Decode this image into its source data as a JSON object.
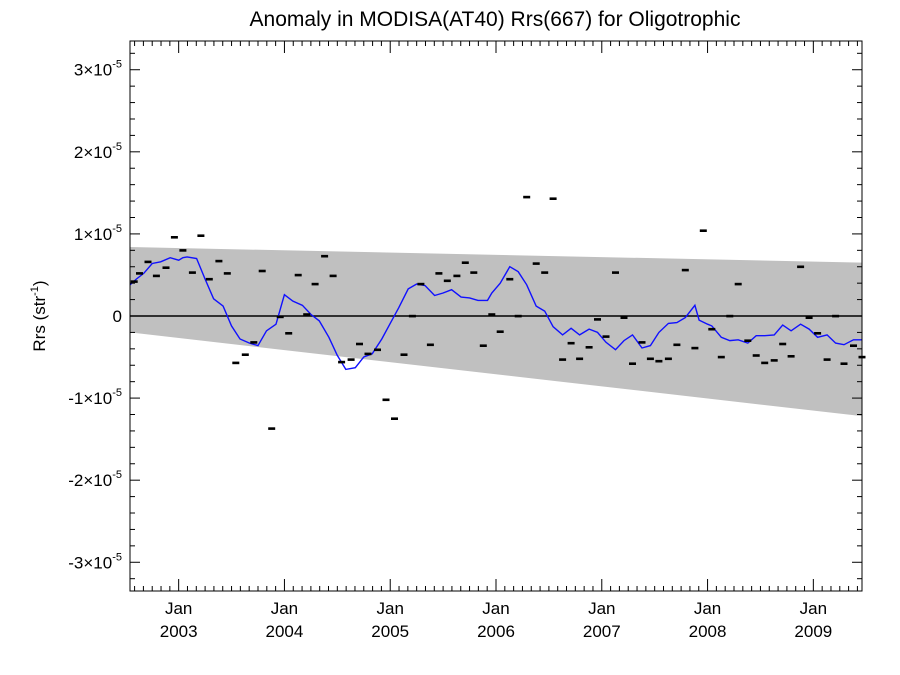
{
  "chart_data": {
    "type": "line",
    "title": "Anomaly in MODISA(AT40) Rrs(667) for Oligotrophic",
    "ylabel": "Rrs (str-1)",
    "ylabel_parts": {
      "main": "Rrs (str",
      "sup": "-1",
      "tail": ")"
    },
    "xlabel": "",
    "xlim": [
      2002.54,
      2009.46
    ],
    "ylim": [
      -3.35e-05,
      3.35e-05
    ],
    "y_ticks": [
      {
        "value": 3e-05,
        "mant": "3×10",
        "exp": "-5"
      },
      {
        "value": 2e-05,
        "mant": "2×10",
        "exp": "-5"
      },
      {
        "value": 1e-05,
        "mant": "1×10",
        "exp": "-5"
      },
      {
        "value": 0,
        "mant": "0",
        "exp": ""
      },
      {
        "value": -1e-05,
        "mant": "-1×10",
        "exp": "-5"
      },
      {
        "value": -2e-05,
        "mant": "-2×10",
        "exp": "-5"
      },
      {
        "value": -3e-05,
        "mant": "-3×10",
        "exp": "-5"
      }
    ],
    "x_ticks": [
      {
        "value": 2003.0,
        "month": "Jan",
        "year": "2003"
      },
      {
        "value": 2004.0,
        "month": "Jan",
        "year": "2004"
      },
      {
        "value": 2005.0,
        "month": "Jan",
        "year": "2005"
      },
      {
        "value": 2006.0,
        "month": "Jan",
        "year": "2006"
      },
      {
        "value": 2007.0,
        "month": "Jan",
        "year": "2007"
      },
      {
        "value": 2008.0,
        "month": "Jan",
        "year": "2008"
      },
      {
        "value": 2009.0,
        "month": "Jan",
        "year": "2009"
      }
    ],
    "confidence_band": {
      "color": "#c0c0c0",
      "upper": [
        [
          2002.54,
          8.4e-06
        ],
        [
          2009.46,
          6.5e-06
        ]
      ],
      "lower": [
        [
          2002.54,
          -2e-06
        ],
        [
          2009.46,
          -1.22e-05
        ]
      ]
    },
    "zero_line": 0,
    "series": [
      {
        "kind": "points",
        "color": "#000000",
        "x": [
          2002.58,
          2002.63,
          2002.71,
          2002.79,
          2002.88,
          2002.96,
          2003.04,
          2003.13,
          2003.21,
          2003.29,
          2003.38,
          2003.46,
          2003.54,
          2003.63,
          2003.71,
          2003.79,
          2003.88,
          2003.96,
          2004.04,
          2004.13,
          2004.21,
          2004.29,
          2004.38,
          2004.46,
          2004.54,
          2004.63,
          2004.71,
          2004.79,
          2004.88,
          2004.96,
          2005.04,
          2005.13,
          2005.21,
          2005.29,
          2005.38,
          2005.46,
          2005.54,
          2005.63,
          2005.71,
          2005.79,
          2005.88,
          2005.96,
          2006.04,
          2006.13,
          2006.21,
          2006.29,
          2006.38,
          2006.46,
          2006.54,
          2006.63,
          2006.71,
          2006.79,
          2006.88,
          2006.96,
          2007.04,
          2007.13,
          2007.21,
          2007.29,
          2007.38,
          2007.46,
          2007.54,
          2007.63,
          2007.71,
          2007.79,
          2007.88,
          2007.96,
          2008.04,
          2008.13,
          2008.21,
          2008.29,
          2008.38,
          2008.46,
          2008.54,
          2008.63,
          2008.71,
          2008.79,
          2008.88,
          2008.96,
          2009.04,
          2009.13,
          2009.21,
          2009.29,
          2009.38,
          2009.46
        ],
        "y": [
          4.2e-06,
          5.2e-06,
          6.6e-06,
          4.9e-06,
          5.9e-06,
          9.6e-06,
          8e-06,
          5.3e-06,
          9.8e-06,
          4.5e-06,
          6.7e-06,
          5.2e-06,
          -5.7e-06,
          -4.7e-06,
          -3.2e-06,
          5.5e-06,
          -1.37e-05,
          -1e-07,
          -2.1e-06,
          5e-06,
          2e-07,
          3.9e-06,
          7.3e-06,
          4.9e-06,
          -5.6e-06,
          -5.3e-06,
          -3.4e-06,
          -4.6e-06,
          -4.1e-06,
          -1.02e-05,
          -1.25e-05,
          -4.7e-06,
          0,
          3.9e-06,
          -3.5e-06,
          5.2e-06,
          4.3e-06,
          4.9e-06,
          6.5e-06,
          5.3e-06,
          -3.6e-06,
          2e-07,
          -1.9e-06,
          4.5e-06,
          0,
          1.45e-05,
          6.4e-06,
          5.3e-06,
          1.43e-05,
          -5.3e-06,
          -3.3e-06,
          -5.2e-06,
          -3.8e-06,
          -4e-07,
          -2.5e-06,
          5.3e-06,
          -2e-07,
          -5.8e-06,
          -3.2e-06,
          -5.2e-06,
          -5.5e-06,
          -5.2e-06,
          -3.5e-06,
          5.6e-06,
          -3.9e-06,
          1.04e-05,
          -1.6e-06,
          -5e-06,
          0,
          3.9e-06,
          -3e-06,
          -4.8e-06,
          -5.7e-06,
          -5.4e-06,
          -3.4e-06,
          -4.9e-06,
          6e-06,
          -2e-07,
          -2.1e-06,
          -5.3e-06,
          0,
          -5.8e-06,
          -3.6e-06,
          -5e-06
        ]
      },
      {
        "kind": "line",
        "color": "#1010ff",
        "x": [
          2002.54,
          2002.6,
          2002.67,
          2002.75,
          2002.83,
          2002.92,
          2003.0,
          2003.04,
          2003.08,
          2003.17,
          2003.25,
          2003.33,
          2003.42,
          2003.5,
          2003.58,
          2003.67,
          2003.75,
          2003.83,
          2003.92,
          2004.0,
          2004.08,
          2004.17,
          2004.25,
          2004.33,
          2004.42,
          2004.5,
          2004.58,
          2004.67,
          2004.75,
          2004.83,
          2004.92,
          2005.0,
          2005.08,
          2005.17,
          2005.25,
          2005.33,
          2005.42,
          2005.5,
          2005.58,
          2005.67,
          2005.75,
          2005.83,
          2005.92,
          2005.96,
          2006.04,
          2006.13,
          2006.21,
          2006.29,
          2006.38,
          2006.46,
          2006.54,
          2006.63,
          2006.71,
          2006.79,
          2006.88,
          2006.96,
          2007.04,
          2007.13,
          2007.21,
          2007.29,
          2007.38,
          2007.46,
          2007.54,
          2007.63,
          2007.71,
          2007.79,
          2007.88,
          2007.92,
          2008.0,
          2008.04,
          2008.13,
          2008.21,
          2008.29,
          2008.38,
          2008.46,
          2008.54,
          2008.63,
          2008.71,
          2008.79,
          2008.88,
          2008.96,
          2009.04,
          2009.13,
          2009.21,
          2009.29,
          2009.38,
          2009.46
        ],
        "y": [
          3.8e-06,
          4.5e-06,
          5.2e-06,
          6.4e-06,
          6.6e-06,
          7.1e-06,
          6.8e-06,
          7.1e-06,
          7.2e-06,
          7e-06,
          4.5e-06,
          2.1e-06,
          1.2e-06,
          -1.2e-06,
          -2.8e-06,
          -3.3e-06,
          -3.6e-06,
          -1.8e-06,
          -1e-06,
          2.6e-06,
          1.8e-06,
          1.3e-06,
          2e-07,
          -6e-07,
          -2.6e-06,
          -4.8e-06,
          -6.5e-06,
          -6.3e-06,
          -5e-06,
          -4.6e-06,
          -2.8e-06,
          -9e-07,
          1e-06,
          3.3e-06,
          3.9e-06,
          3.7e-06,
          2.5e-06,
          2.8e-06,
          3.2e-06,
          2.3e-06,
          2.2e-06,
          1.9e-06,
          1.9e-06,
          2.8e-06,
          4e-06,
          6e-06,
          5.4e-06,
          3.8e-06,
          1.2e-06,
          6e-07,
          -1.3e-06,
          -2.3e-06,
          -1.5e-06,
          -2.3e-06,
          -1.6e-06,
          -2e-06,
          -3.2e-06,
          -4.1e-06,
          -3e-06,
          -2.3e-06,
          -3.9e-06,
          -3.6e-06,
          -2e-06,
          -9e-07,
          -8e-07,
          -2e-07,
          1.3e-06,
          -5e-07,
          -1e-06,
          -1.2e-06,
          -2.6e-06,
          -3e-06,
          -2.9e-06,
          -3.3e-06,
          -2.4e-06,
          -2.4e-06,
          -2.3e-06,
          -1.1e-06,
          -1.8e-06,
          -1e-06,
          -1.6e-06,
          -2.6e-06,
          -2.3e-06,
          -3.3e-06,
          -3.5e-06,
          -2.9e-06,
          -2.9e-06
        ]
      }
    ]
  }
}
